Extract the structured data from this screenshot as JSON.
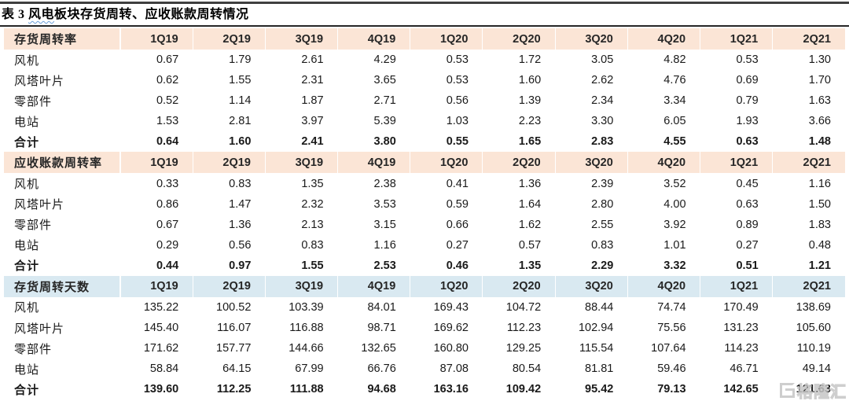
{
  "title": {
    "prefix": "表 3 ",
    "highlight": "风电",
    "rest": "板块存货周转、应收账款周转情况"
  },
  "columns": [
    "1Q19",
    "2Q19",
    "3Q19",
    "4Q19",
    "1Q20",
    "2Q20",
    "3Q20",
    "4Q20",
    "1Q21",
    "2Q21"
  ],
  "colors": {
    "section_header_peach": "#fbe5d6",
    "section_header_blue": "#d9e9f1",
    "top_rule": "#3f3f3f",
    "text": "#1a1a1a"
  },
  "sections": [
    {
      "header": "存货周转率",
      "header_bg": "#fbe5d6",
      "rows": [
        {
          "label": "风机",
          "bold": false,
          "values": [
            "0.67",
            "1.79",
            "2.61",
            "4.29",
            "0.53",
            "1.72",
            "3.05",
            "4.82",
            "0.53",
            "1.30"
          ]
        },
        {
          "label": "风塔叶片",
          "bold": false,
          "values": [
            "0.62",
            "1.55",
            "2.31",
            "3.65",
            "0.53",
            "1.60",
            "2.62",
            "4.76",
            "0.69",
            "1.70"
          ]
        },
        {
          "label": "零部件",
          "bold": false,
          "values": [
            "0.52",
            "1.14",
            "1.87",
            "2.71",
            "0.56",
            "1.39",
            "2.34",
            "3.34",
            "0.79",
            "1.63"
          ]
        },
        {
          "label": "电站",
          "bold": false,
          "values": [
            "1.53",
            "2.81",
            "3.97",
            "5.39",
            "1.03",
            "2.23",
            "3.30",
            "6.05",
            "1.93",
            "3.66"
          ]
        },
        {
          "label": "合计",
          "bold": true,
          "values": [
            "0.64",
            "1.60",
            "2.41",
            "3.80",
            "0.55",
            "1.65",
            "2.83",
            "4.55",
            "0.63",
            "1.48"
          ]
        }
      ]
    },
    {
      "header": "应收账款周转率",
      "header_bg": "#fbe5d6",
      "rows": [
        {
          "label": "风机",
          "bold": false,
          "values": [
            "0.33",
            "0.83",
            "1.35",
            "2.38",
            "0.41",
            "1.36",
            "2.39",
            "3.52",
            "0.45",
            "1.16"
          ]
        },
        {
          "label": "风塔叶片",
          "bold": false,
          "values": [
            "0.86",
            "1.47",
            "2.32",
            "3.53",
            "0.59",
            "1.64",
            "2.80",
            "4.00",
            "0.63",
            "1.50"
          ]
        },
        {
          "label": "零部件",
          "bold": false,
          "values": [
            "0.67",
            "1.36",
            "2.13",
            "3.15",
            "0.66",
            "1.62",
            "2.55",
            "3.92",
            "0.89",
            "1.83"
          ]
        },
        {
          "label": "电站",
          "bold": false,
          "values": [
            "0.29",
            "0.56",
            "0.83",
            "1.16",
            "0.27",
            "0.57",
            "0.83",
            "1.01",
            "0.27",
            "0.48"
          ]
        },
        {
          "label": "合计",
          "bold": true,
          "values": [
            "0.44",
            "0.97",
            "1.55",
            "2.53",
            "0.46",
            "1.35",
            "2.29",
            "3.32",
            "0.51",
            "1.21"
          ]
        }
      ]
    },
    {
      "header": "存货周转天数",
      "header_bg": "#d9e9f1",
      "rows": [
        {
          "label": "风机",
          "bold": false,
          "values": [
            "135.22",
            "100.52",
            "103.39",
            "84.01",
            "169.43",
            "104.72",
            "88.44",
            "74.74",
            "170.49",
            "138.69"
          ]
        },
        {
          "label": "风塔叶片",
          "bold": false,
          "values": [
            "145.40",
            "116.07",
            "116.88",
            "98.71",
            "169.62",
            "112.23",
            "102.94",
            "75.56",
            "131.23",
            "105.60"
          ]
        },
        {
          "label": "零部件",
          "bold": false,
          "values": [
            "171.62",
            "157.77",
            "144.66",
            "132.65",
            "160.80",
            "129.25",
            "115.54",
            "107.64",
            "114.23",
            "110.19"
          ]
        },
        {
          "label": "电站",
          "bold": false,
          "values": [
            "58.84",
            "64.15",
            "67.99",
            "66.76",
            "87.08",
            "80.54",
            "81.81",
            "59.46",
            "46.71",
            "49.14"
          ]
        },
        {
          "label": "合计",
          "bold": true,
          "values": [
            "139.60",
            "112.25",
            "111.88",
            "94.68",
            "163.16",
            "109.42",
            "95.42",
            "79.13",
            "142.65",
            "121.63"
          ]
        }
      ]
    }
  ],
  "watermark": {
    "text": "格隆汇"
  }
}
